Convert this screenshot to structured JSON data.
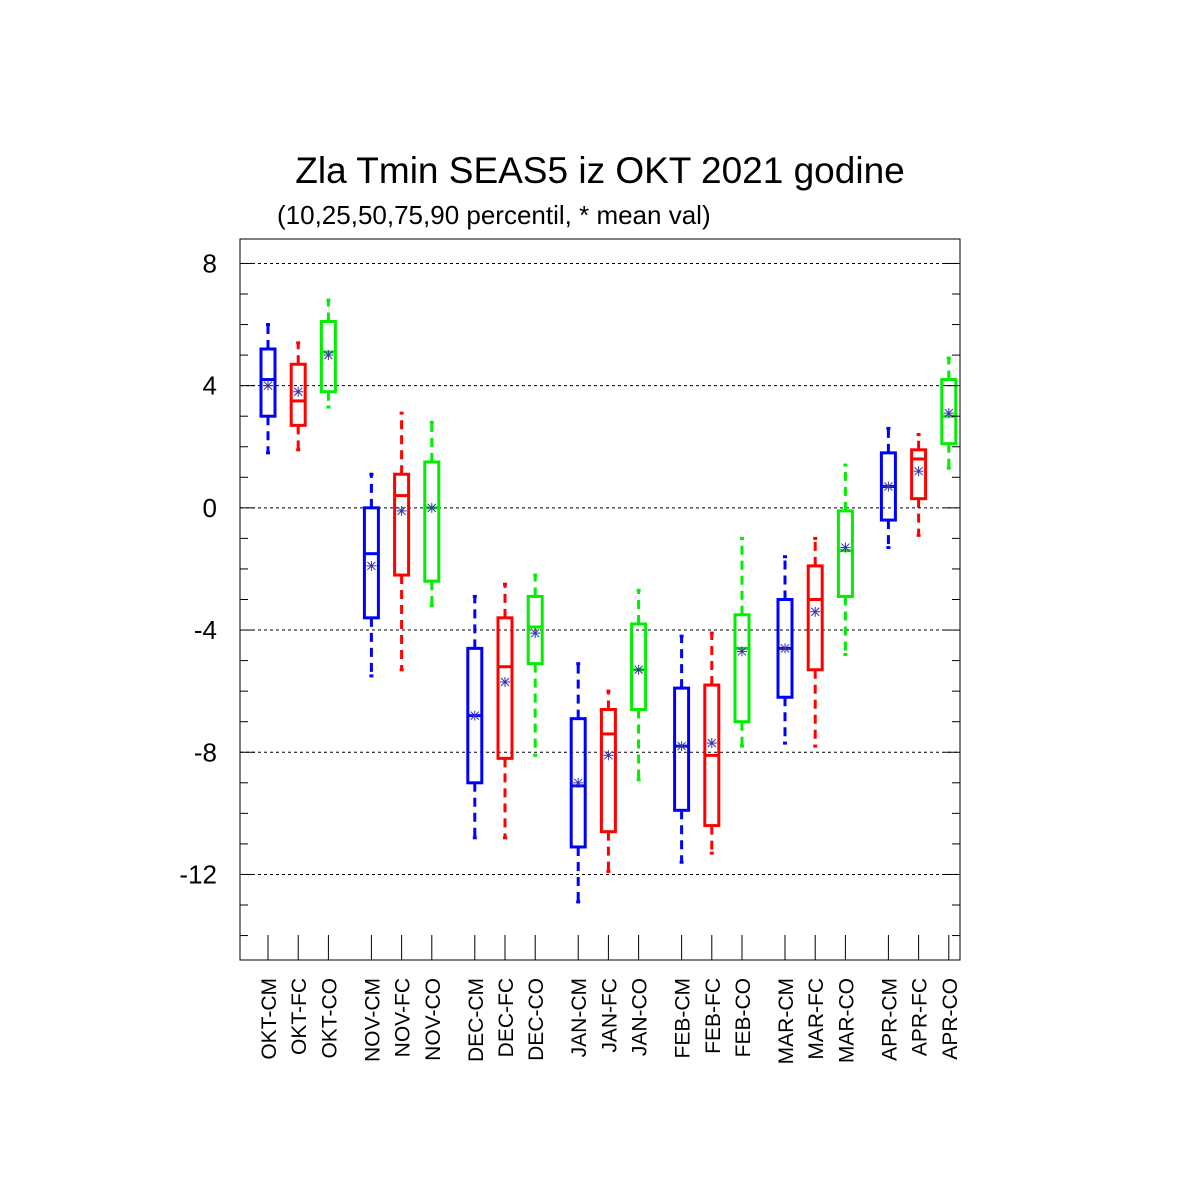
{
  "chart_data": {
    "type": "boxplot",
    "title": "Zla Tmin SEAS5 iz OKT 2021 godine",
    "subtitle": "(10,25,50,75,90 percentil, * mean val)",
    "ylim": [
      -14.8,
      8.8
    ],
    "yticks": [
      8,
      4,
      0,
      -4,
      -8,
      -12
    ],
    "ytick_labels": [
      "8",
      "4",
      "0",
      "-4",
      "-8",
      "-12"
    ],
    "grid": "horizontal dashed at major ticks",
    "colors": {
      "CM": "#0000ff",
      "FC": "#ff0000",
      "CO": "#00ee00",
      "mean_marker": "#3333aa"
    },
    "categories": [
      "OKT-CM",
      "OKT-FC",
      "OKT-CO",
      "NOV-CM",
      "NOV-FC",
      "NOV-CO",
      "DEC-CM",
      "DEC-FC",
      "DEC-CO",
      "JAN-CM",
      "JAN-FC",
      "JAN-CO",
      "FEB-CM",
      "FEB-FC",
      "FEB-CO",
      "MAR-CM",
      "MAR-FC",
      "MAR-CO",
      "APR-CM",
      "APR-FC",
      "APR-CO"
    ],
    "boxes": [
      {
        "p10": 1.8,
        "p25": 3.0,
        "p50": 4.2,
        "p75": 5.2,
        "p90": 6.0,
        "mean": 4.0,
        "group": "CM"
      },
      {
        "p10": 1.9,
        "p25": 2.7,
        "p50": 3.5,
        "p75": 4.7,
        "p90": 5.4,
        "mean": 3.8,
        "group": "FC"
      },
      {
        "p10": 3.3,
        "p25": 3.8,
        "p50": 5.1,
        "p75": 6.1,
        "p90": 6.8,
        "mean": 5.0,
        "group": "CO"
      },
      {
        "p10": -5.5,
        "p25": -3.6,
        "p50": -1.5,
        "p75": 0.0,
        "p90": 1.1,
        "mean": -1.9,
        "group": "CM"
      },
      {
        "p10": -5.3,
        "p25": -2.2,
        "p50": 0.4,
        "p75": 1.1,
        "p90": 3.1,
        "mean": -0.1,
        "group": "FC"
      },
      {
        "p10": -3.2,
        "p25": -2.4,
        "p50": 0.0,
        "p75": 1.5,
        "p90": 2.8,
        "mean": 0.0,
        "group": "CO"
      },
      {
        "p10": -10.8,
        "p25": -9.0,
        "p50": -6.8,
        "p75": -4.6,
        "p90": -2.9,
        "mean": -6.8,
        "group": "CM"
      },
      {
        "p10": -10.8,
        "p25": -8.2,
        "p50": -5.2,
        "p75": -3.6,
        "p90": -2.5,
        "mean": -5.7,
        "group": "FC"
      },
      {
        "p10": -8.1,
        "p25": -5.1,
        "p50": -3.9,
        "p75": -2.9,
        "p90": -2.2,
        "mean": -4.1,
        "group": "CO"
      },
      {
        "p10": -12.9,
        "p25": -11.1,
        "p50": -9.1,
        "p75": -6.9,
        "p90": -5.1,
        "mean": -9.0,
        "group": "CM"
      },
      {
        "p10": -11.9,
        "p25": -10.6,
        "p50": -7.4,
        "p75": -6.6,
        "p90": -6.0,
        "mean": -8.1,
        "group": "FC"
      },
      {
        "p10": -8.9,
        "p25": -6.6,
        "p50": -5.3,
        "p75": -3.8,
        "p90": -2.7,
        "mean": -5.3,
        "group": "CO"
      },
      {
        "p10": -11.6,
        "p25": -9.9,
        "p50": -7.8,
        "p75": -5.9,
        "p90": -4.2,
        "mean": -7.8,
        "group": "CM"
      },
      {
        "p10": -11.3,
        "p25": -10.4,
        "p50": -8.1,
        "p75": -5.8,
        "p90": -4.1,
        "mean": -7.7,
        "group": "FC"
      },
      {
        "p10": -7.8,
        "p25": -7.0,
        "p50": -4.6,
        "p75": -3.5,
        "p90": -1.0,
        "mean": -4.7,
        "group": "CO"
      },
      {
        "p10": -7.7,
        "p25": -6.2,
        "p50": -4.6,
        "p75": -3.0,
        "p90": -1.6,
        "mean": -4.6,
        "group": "CM"
      },
      {
        "p10": -7.8,
        "p25": -5.3,
        "p50": -3.0,
        "p75": -1.9,
        "p90": -1.0,
        "mean": -3.4,
        "group": "FC"
      },
      {
        "p10": -4.8,
        "p25": -2.9,
        "p50": -1.4,
        "p75": -0.1,
        "p90": 1.4,
        "mean": -1.3,
        "group": "CO"
      },
      {
        "p10": -1.3,
        "p25": -0.4,
        "p50": 0.7,
        "p75": 1.8,
        "p90": 2.6,
        "mean": 0.7,
        "group": "CM"
      },
      {
        "p10": -0.9,
        "p25": 0.3,
        "p50": 1.6,
        "p75": 1.9,
        "p90": 2.4,
        "mean": 1.2,
        "group": "FC"
      },
      {
        "p10": 1.3,
        "p25": 2.1,
        "p50": 3.0,
        "p75": 4.2,
        "p90": 4.9,
        "mean": 3.1,
        "group": "CO"
      }
    ]
  }
}
